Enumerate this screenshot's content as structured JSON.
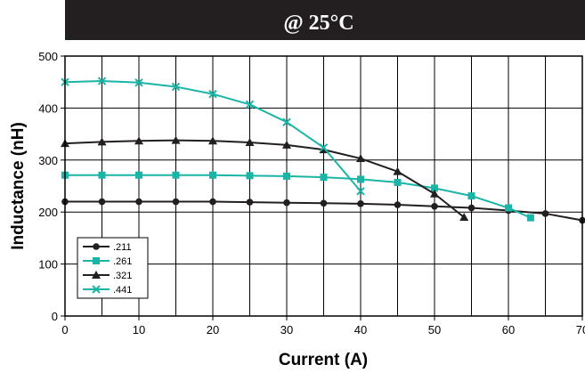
{
  "chart_data": {
    "type": "line",
    "title": "@ 25°C",
    "xlabel": "Current (A)",
    "ylabel": "Inductance (nH)",
    "xlim": [
      0,
      70
    ],
    "ylim": [
      0,
      500
    ],
    "x_ticks": [
      0,
      10,
      20,
      30,
      40,
      50,
      60,
      70
    ],
    "y_ticks": [
      0,
      100,
      200,
      300,
      400,
      500
    ],
    "grid": true,
    "legend_position": "bottom-left",
    "colors": {
      "banner": "#231f20",
      "black": "#231f20",
      "teal": "#1ab5a6"
    },
    "series": [
      {
        "name": ".211",
        "color": "#231f20",
        "marker": "circle",
        "x": [
          0,
          5,
          10,
          15,
          20,
          25,
          30,
          35,
          40,
          45,
          50,
          55,
          60,
          65,
          70
        ],
        "y": [
          220,
          220,
          220,
          220,
          220,
          219,
          218,
          217,
          216,
          214,
          211,
          208,
          203,
          197,
          184
        ]
      },
      {
        "name": ".261",
        "color": "#1ab5a6",
        "marker": "square",
        "x": [
          0,
          5,
          10,
          15,
          20,
          25,
          30,
          35,
          40,
          45,
          50,
          55,
          60,
          63
        ],
        "y": [
          271,
          271,
          271,
          271,
          271,
          270,
          269,
          267,
          263,
          257,
          246,
          231,
          208,
          189
        ]
      },
      {
        "name": ".321",
        "color": "#231f20",
        "marker": "triangle",
        "x": [
          0,
          5,
          10,
          15,
          20,
          25,
          30,
          35,
          40,
          45,
          50,
          54
        ],
        "y": [
          332,
          335,
          337,
          338,
          337,
          334,
          329,
          320,
          303,
          278,
          235,
          190
        ]
      },
      {
        "name": ".441",
        "color": "#1ab5a6",
        "marker": "x",
        "x": [
          0,
          5,
          10,
          15,
          20,
          25,
          30,
          35,
          40
        ],
        "y": [
          450,
          452,
          449,
          441,
          427,
          407,
          373,
          324,
          240
        ]
      }
    ]
  }
}
